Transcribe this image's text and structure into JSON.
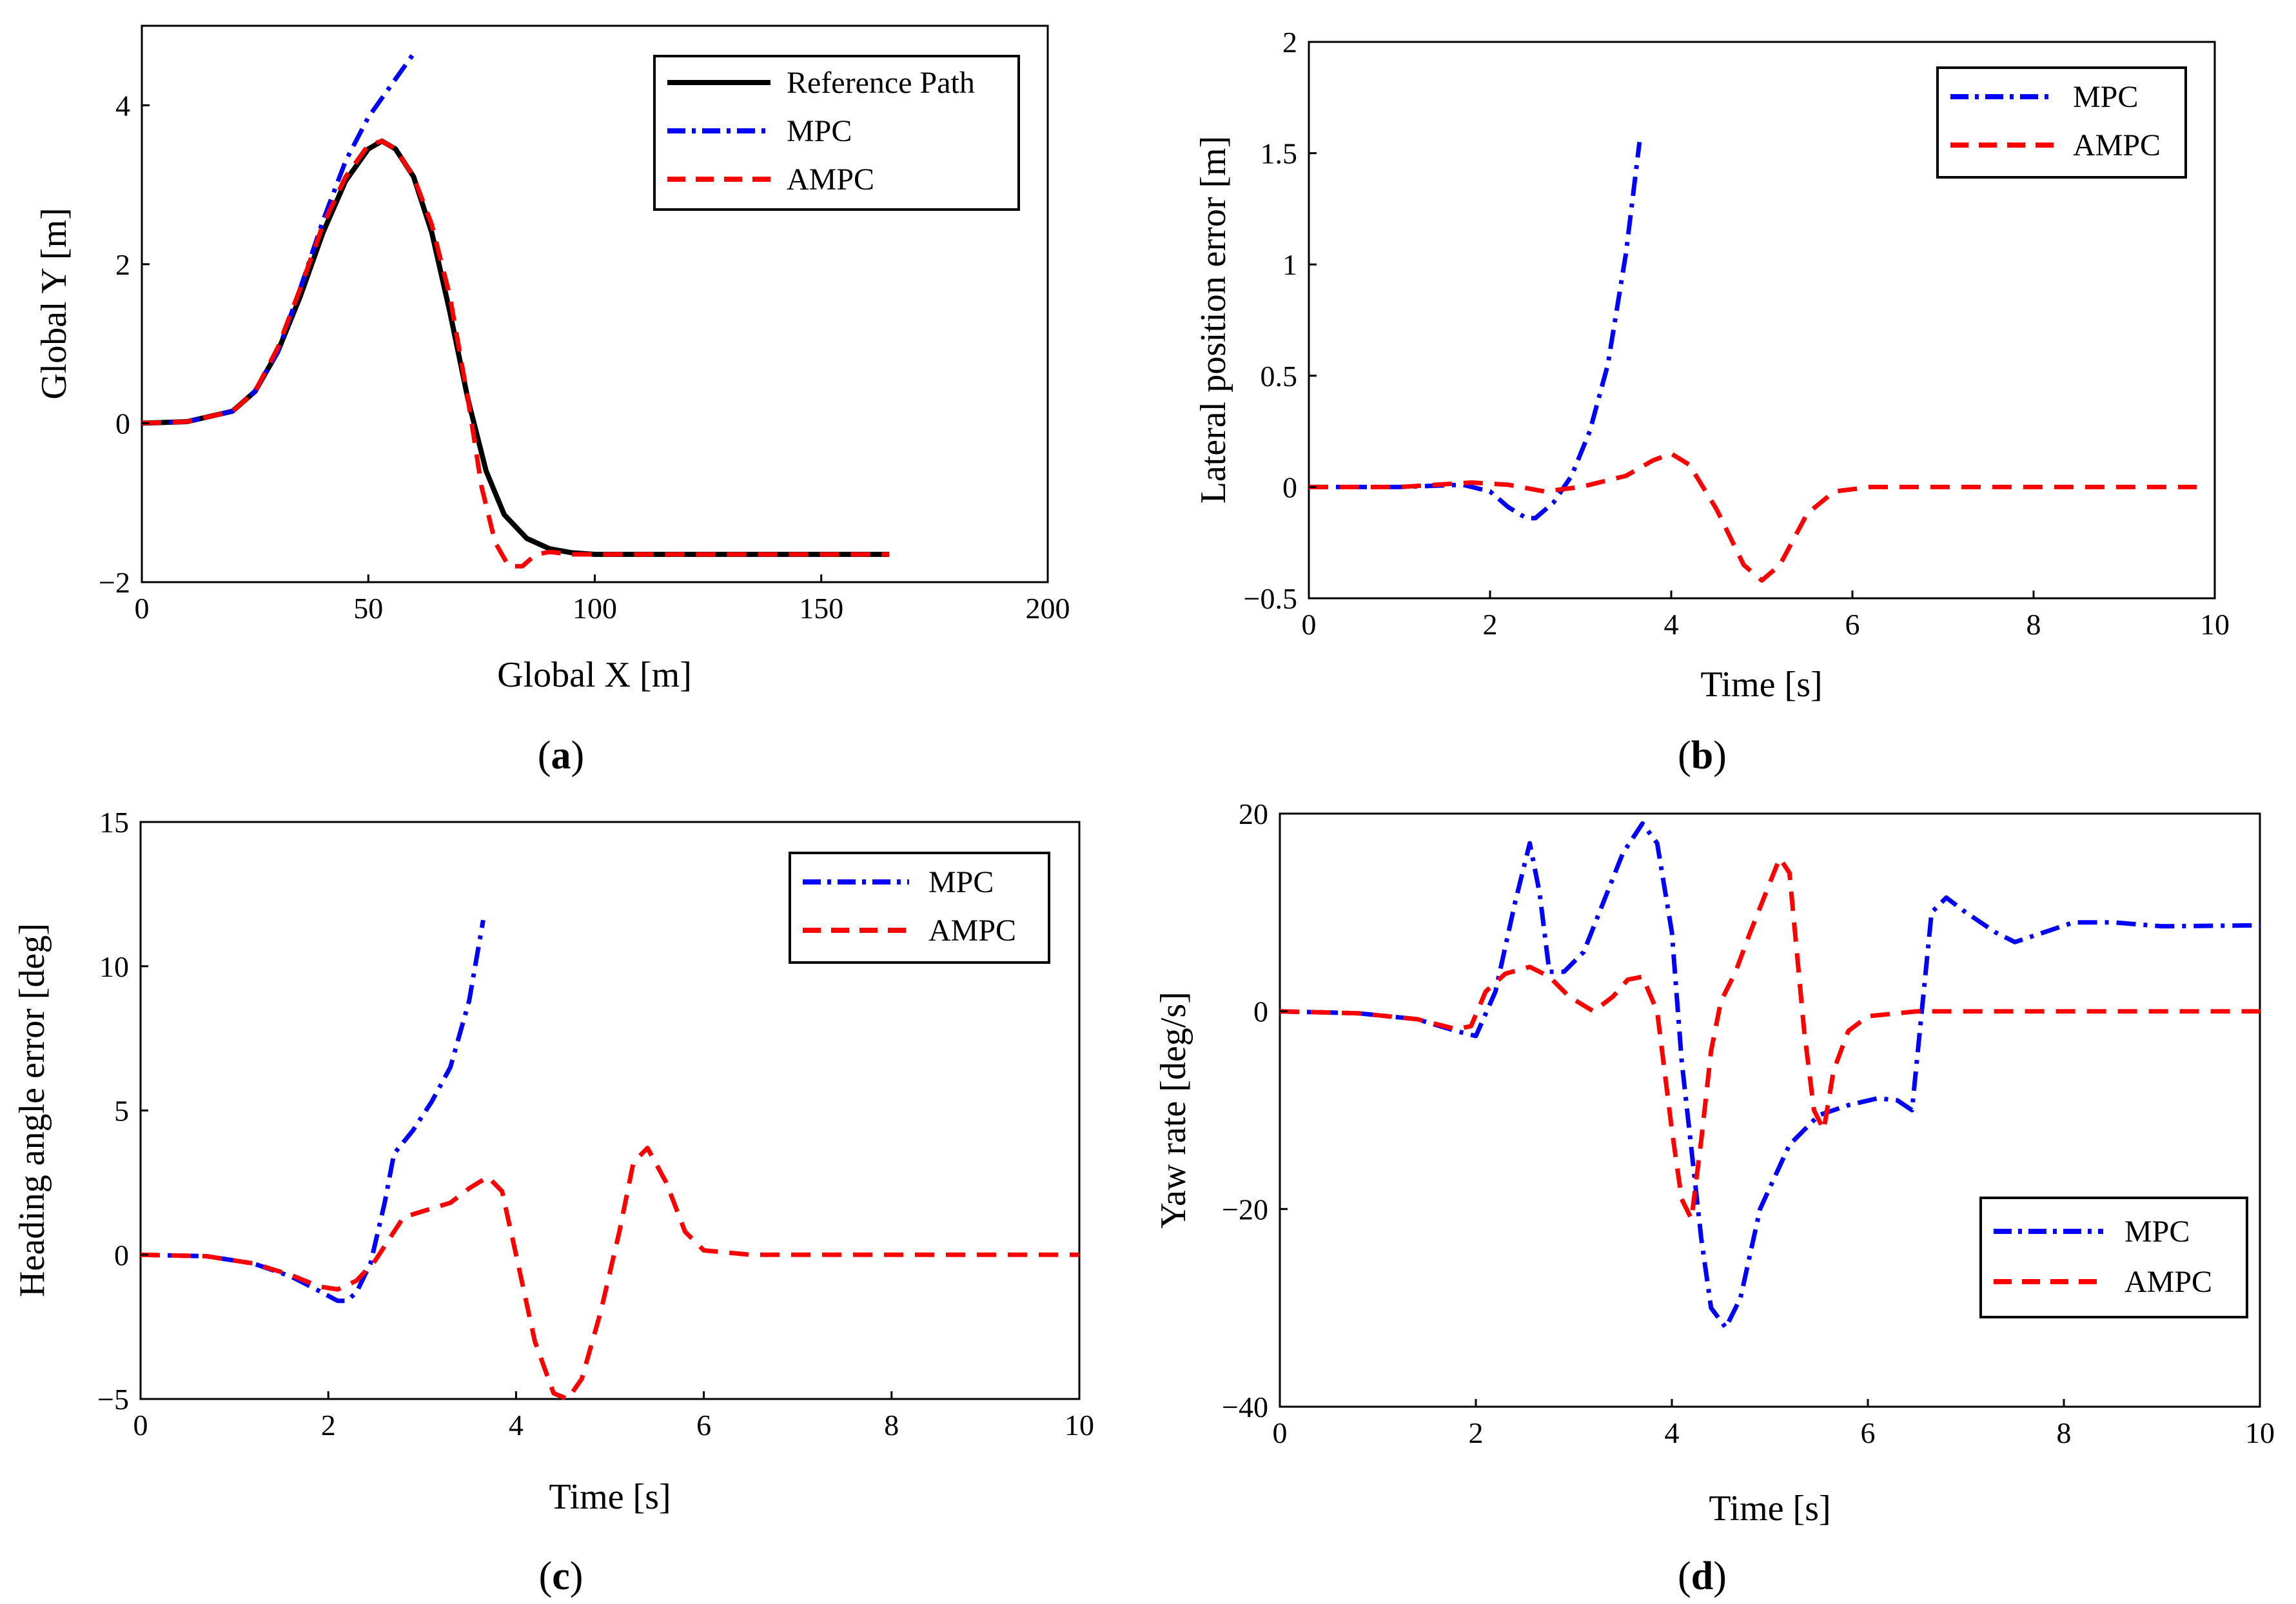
{
  "chart_data": [
    {
      "id": "a",
      "caption_letter": "a",
      "type": "line",
      "xlabel": "Global X [m]",
      "ylabel": "Global Y [m]",
      "xlim": [
        0,
        200
      ],
      "ylim": [
        -2,
        5
      ],
      "xticks": [
        0,
        50,
        100,
        150,
        200
      ],
      "yticks": [
        -2,
        0,
        2,
        4
      ],
      "xtick_labels": [
        "0",
        "50",
        "100",
        "150",
        "200"
      ],
      "ytick_labels": [
        "−2",
        "0",
        "2",
        "4"
      ],
      "legend_position": "top-right",
      "series": [
        {
          "name": "Reference Path",
          "color": "#000000",
          "style": "solid",
          "points": [
            [
              0,
              0
            ],
            [
              10,
              0.02
            ],
            [
              20,
              0.15
            ],
            [
              25,
              0.4
            ],
            [
              30,
              0.9
            ],
            [
              35,
              1.6
            ],
            [
              40,
              2.4
            ],
            [
              45,
              3.05
            ],
            [
              50,
              3.45
            ],
            [
              53,
              3.55
            ],
            [
              56,
              3.45
            ],
            [
              60,
              3.1
            ],
            [
              64,
              2.4
            ],
            [
              68,
              1.4
            ],
            [
              72,
              0.3
            ],
            [
              76,
              -0.6
            ],
            [
              80,
              -1.15
            ],
            [
              85,
              -1.45
            ],
            [
              90,
              -1.58
            ],
            [
              95,
              -1.63
            ],
            [
              100,
              -1.65
            ],
            [
              120,
              -1.65
            ],
            [
              150,
              -1.65
            ],
            [
              165,
              -1.65
            ]
          ]
        },
        {
          "name": "MPC",
          "color": "#0000ff",
          "style": "dashdot",
          "points": [
            [
              0,
              0
            ],
            [
              10,
              0.02
            ],
            [
              20,
              0.15
            ],
            [
              25,
              0.4
            ],
            [
              30,
              0.9
            ],
            [
              35,
              1.7
            ],
            [
              40,
              2.55
            ],
            [
              45,
              3.3
            ],
            [
              50,
              3.85
            ],
            [
              55,
              4.25
            ],
            [
              60,
              4.65
            ]
          ]
        },
        {
          "name": "AMPC",
          "color": "#ff0000",
          "style": "dashed",
          "points": [
            [
              0,
              0
            ],
            [
              10,
              0.02
            ],
            [
              20,
              0.15
            ],
            [
              25,
              0.4
            ],
            [
              30,
              0.95
            ],
            [
              35,
              1.7
            ],
            [
              40,
              2.5
            ],
            [
              45,
              3.1
            ],
            [
              50,
              3.5
            ],
            [
              53,
              3.55
            ],
            [
              56,
              3.45
            ],
            [
              60,
              3.1
            ],
            [
              64,
              2.5
            ],
            [
              68,
              1.6
            ],
            [
              72,
              0.3
            ],
            [
              75,
              -0.8
            ],
            [
              78,
              -1.5
            ],
            [
              81,
              -1.8
            ],
            [
              84,
              -1.8
            ],
            [
              87,
              -1.65
            ],
            [
              90,
              -1.62
            ],
            [
              95,
              -1.65
            ],
            [
              100,
              -1.65
            ],
            [
              120,
              -1.65
            ],
            [
              150,
              -1.65
            ],
            [
              165,
              -1.65
            ]
          ]
        }
      ]
    },
    {
      "id": "b",
      "caption_letter": "b",
      "type": "line",
      "xlabel": "Time [s]",
      "ylabel": "Lateral position error [m]",
      "xlim": [
        0,
        10
      ],
      "ylim": [
        -0.5,
        2
      ],
      "xticks": [
        0,
        2,
        4,
        6,
        8,
        10
      ],
      "yticks": [
        -0.5,
        0,
        0.5,
        1,
        1.5,
        2
      ],
      "xtick_labels": [
        "0",
        "2",
        "4",
        "6",
        "8",
        "10"
      ],
      "ytick_labels": [
        "−0.5",
        "0",
        "0.5",
        "1",
        "1.5",
        "2"
      ],
      "legend_position": "top-right",
      "series": [
        {
          "name": "MPC",
          "color": "#0000ff",
          "style": "dashdot",
          "points": [
            [
              0,
              0
            ],
            [
              1,
              0
            ],
            [
              1.7,
              0.01
            ],
            [
              2.0,
              -0.02
            ],
            [
              2.2,
              -0.09
            ],
            [
              2.4,
              -0.14
            ],
            [
              2.5,
              -0.14
            ],
            [
              2.7,
              -0.07
            ],
            [
              2.9,
              0.05
            ],
            [
              3.1,
              0.25
            ],
            [
              3.3,
              0.55
            ],
            [
              3.5,
              1.05
            ],
            [
              3.65,
              1.55
            ]
          ]
        },
        {
          "name": "AMPC",
          "color": "#ff0000",
          "style": "dashed",
          "points": [
            [
              0,
              0
            ],
            [
              1,
              0
            ],
            [
              1.8,
              0.02
            ],
            [
              2.2,
              0.01
            ],
            [
              2.6,
              -0.02
            ],
            [
              3.0,
              0.0
            ],
            [
              3.5,
              0.05
            ],
            [
              3.8,
              0.12
            ],
            [
              4.0,
              0.15
            ],
            [
              4.2,
              0.1
            ],
            [
              4.5,
              -0.1
            ],
            [
              4.8,
              -0.35
            ],
            [
              5.0,
              -0.42
            ],
            [
              5.2,
              -0.35
            ],
            [
              5.5,
              -0.12
            ],
            [
              5.8,
              -0.02
            ],
            [
              6.2,
              0
            ],
            [
              8,
              0
            ],
            [
              9.8,
              0
            ]
          ]
        }
      ]
    },
    {
      "id": "c",
      "caption_letter": "c",
      "type": "line",
      "xlabel": "Time [s]",
      "ylabel": "Heading angle error [deg]",
      "xlim": [
        0,
        10
      ],
      "ylim": [
        -5,
        15
      ],
      "xticks": [
        0,
        2,
        4,
        6,
        8,
        10
      ],
      "yticks": [
        -5,
        0,
        5,
        10,
        15
      ],
      "xtick_labels": [
        "0",
        "2",
        "4",
        "6",
        "8",
        "10"
      ],
      "ytick_labels": [
        "−5",
        "0",
        "5",
        "10",
        "15"
      ],
      "legend_position": "top-right",
      "series": [
        {
          "name": "MPC",
          "color": "#0000ff",
          "style": "dashdot",
          "points": [
            [
              0,
              0
            ],
            [
              0.7,
              -0.05
            ],
            [
              1.2,
              -0.3
            ],
            [
              1.6,
              -0.75
            ],
            [
              1.9,
              -1.25
            ],
            [
              2.1,
              -1.6
            ],
            [
              2.2,
              -1.6
            ],
            [
              2.3,
              -1.3
            ],
            [
              2.45,
              -0.3
            ],
            [
              2.6,
              1.8
            ],
            [
              2.7,
              3.5
            ],
            [
              2.9,
              4.3
            ],
            [
              3.1,
              5.3
            ],
            [
              3.3,
              6.5
            ],
            [
              3.5,
              8.8
            ],
            [
              3.65,
              11.6
            ]
          ]
        },
        {
          "name": "AMPC",
          "color": "#ff0000",
          "style": "dashed",
          "points": [
            [
              0,
              0
            ],
            [
              0.7,
              -0.05
            ],
            [
              1.2,
              -0.3
            ],
            [
              1.6,
              -0.7
            ],
            [
              1.9,
              -1.1
            ],
            [
              2.1,
              -1.2
            ],
            [
              2.3,
              -0.9
            ],
            [
              2.5,
              -0.2
            ],
            [
              2.8,
              1.3
            ],
            [
              3.0,
              1.5
            ],
            [
              3.3,
              1.8
            ],
            [
              3.5,
              2.3
            ],
            [
              3.7,
              2.7
            ],
            [
              3.85,
              2.2
            ],
            [
              4.0,
              0
            ],
            [
              4.2,
              -3.0
            ],
            [
              4.4,
              -4.8
            ],
            [
              4.55,
              -5.0
            ],
            [
              4.7,
              -4.3
            ],
            [
              4.9,
              -2.0
            ],
            [
              5.1,
              0.8
            ],
            [
              5.25,
              3.2
            ],
            [
              5.4,
              3.7
            ],
            [
              5.6,
              2.5
            ],
            [
              5.8,
              0.8
            ],
            [
              6.0,
              0.15
            ],
            [
              6.5,
              0
            ],
            [
              10,
              0
            ]
          ]
        }
      ]
    },
    {
      "id": "d",
      "caption_letter": "d",
      "type": "line",
      "xlabel": "Time [s]",
      "ylabel": "Yaw rate [deg/s]",
      "xlim": [
        0,
        10
      ],
      "ylim": [
        -40,
        20
      ],
      "xticks": [
        0,
        2,
        4,
        6,
        8,
        10
      ],
      "yticks": [
        -40,
        -20,
        0,
        20
      ],
      "xtick_labels": [
        "0",
        "2",
        "4",
        "6",
        "8",
        "10"
      ],
      "ytick_labels": [
        "−40",
        "−20",
        "0",
        "20"
      ],
      "legend_position": "bottom-right",
      "series": [
        {
          "name": "MPC",
          "color": "#0000ff",
          "style": "dashdot",
          "points": [
            [
              0,
              0
            ],
            [
              0.8,
              -0.2
            ],
            [
              1.4,
              -0.8
            ],
            [
              1.8,
              -2
            ],
            [
              2.0,
              -2.5
            ],
            [
              2.2,
              2
            ],
            [
              2.4,
              11
            ],
            [
              2.55,
              17
            ],
            [
              2.65,
              12
            ],
            [
              2.75,
              4
            ],
            [
              2.9,
              4
            ],
            [
              3.1,
              6
            ],
            [
              3.3,
              11
            ],
            [
              3.5,
              16
            ],
            [
              3.7,
              19
            ],
            [
              3.85,
              17
            ],
            [
              4.0,
              8
            ],
            [
              4.1,
              -5
            ],
            [
              4.2,
              -14
            ],
            [
              4.3,
              -23
            ],
            [
              4.4,
              -30
            ],
            [
              4.55,
              -32
            ],
            [
              4.7,
              -29
            ],
            [
              4.9,
              -20
            ],
            [
              5.2,
              -13.5
            ],
            [
              5.5,
              -10.5
            ],
            [
              5.8,
              -9.5
            ],
            [
              6.1,
              -8.8
            ],
            [
              6.3,
              -9
            ],
            [
              6.45,
              -10
            ],
            [
              6.55,
              0
            ],
            [
              6.65,
              10
            ],
            [
              6.8,
              11.5
            ],
            [
              7.0,
              10
            ],
            [
              7.3,
              8
            ],
            [
              7.5,
              7
            ],
            [
              7.8,
              8
            ],
            [
              8.1,
              9
            ],
            [
              8.5,
              9
            ],
            [
              9.0,
              8.6
            ],
            [
              10,
              8.7
            ]
          ]
        },
        {
          "name": "AMPC",
          "color": "#ff0000",
          "style": "dashed",
          "points": [
            [
              0,
              0
            ],
            [
              0.8,
              -0.2
            ],
            [
              1.4,
              -0.8
            ],
            [
              1.8,
              -1.8
            ],
            [
              1.95,
              -1.5
            ],
            [
              2.1,
              2
            ],
            [
              2.3,
              3.8
            ],
            [
              2.55,
              4.5
            ],
            [
              2.75,
              3.5
            ],
            [
              2.95,
              1.5
            ],
            [
              3.2,
              0
            ],
            [
              3.4,
              1.5
            ],
            [
              3.55,
              3.2
            ],
            [
              3.7,
              3.5
            ],
            [
              3.85,
              0
            ],
            [
              4.0,
              -12
            ],
            [
              4.1,
              -19
            ],
            [
              4.2,
              -21
            ],
            [
              4.3,
              -13
            ],
            [
              4.4,
              -4
            ],
            [
              4.5,
              1
            ],
            [
              4.65,
              4
            ],
            [
              4.8,
              8
            ],
            [
              5.0,
              13
            ],
            [
              5.1,
              15.5
            ],
            [
              5.2,
              14
            ],
            [
              5.35,
              -2
            ],
            [
              5.45,
              -10
            ],
            [
              5.55,
              -12
            ],
            [
              5.65,
              -6
            ],
            [
              5.8,
              -2
            ],
            [
              6.0,
              -0.5
            ],
            [
              6.5,
              0
            ],
            [
              10,
              0
            ]
          ]
        }
      ]
    }
  ]
}
